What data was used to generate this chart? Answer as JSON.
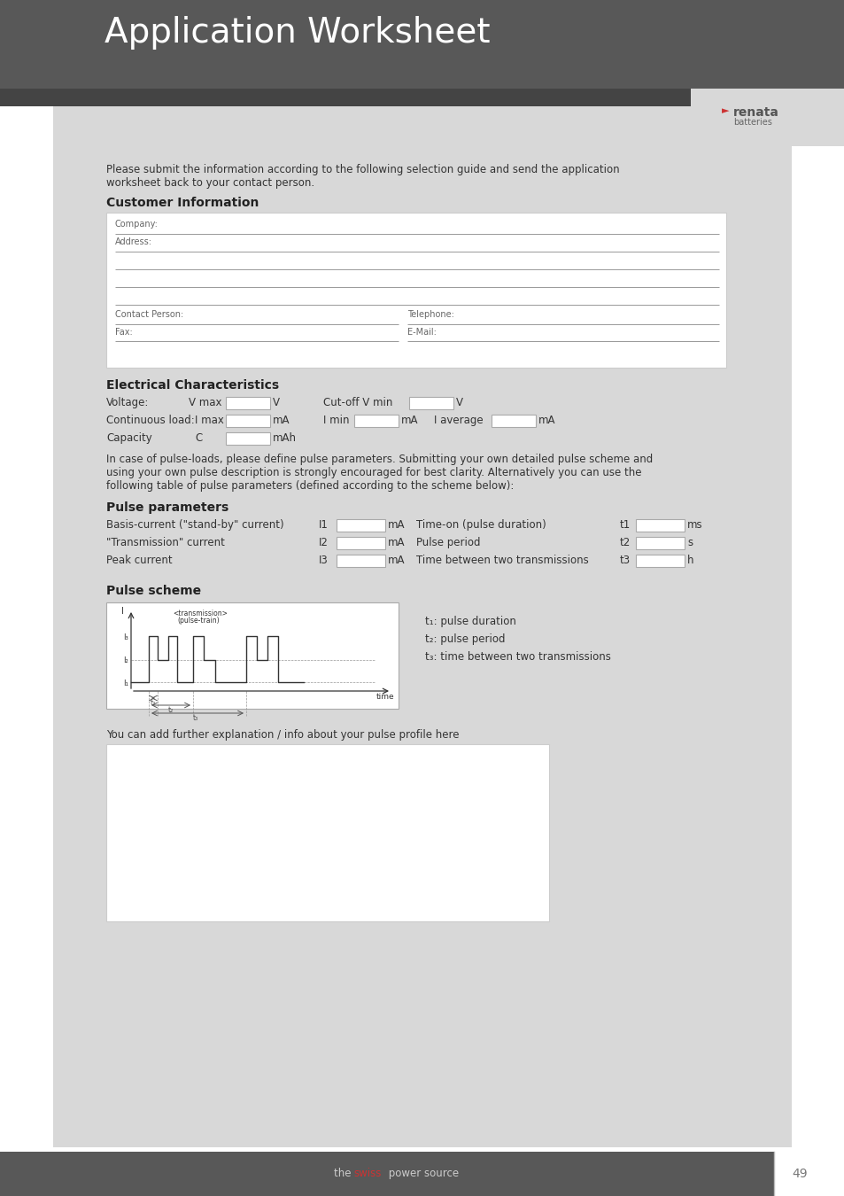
{
  "title": "Application Worksheet",
  "header_bg": "#585858",
  "header_text_color": "#ffffff",
  "content_bg": "#d8d8d8",
  "white": "#ffffff",
  "dark_text": "#333333",
  "light_text": "#666666",
  "footer_bg": "#585858",
  "footer_text_gray": "#cccccc",
  "footer_swiss_color": "#cc3333",
  "page_number": "49",
  "intro_text_line1": "Please submit the information according to the following selection guide and send the application",
  "intro_text_line2": "worksheet back to your contact person.",
  "customer_info_title": "Customer Information",
  "electrical_title": "Electrical Characteristics",
  "pulse_params_title": "Pulse parameters",
  "pulse_scheme_title": "Pulse scheme",
  "further_info_text": "You can add further explanation / info about your pulse profile here",
  "pulse_body_line1": "In case of pulse-loads, please define pulse parameters. Submitting your own detailed pulse scheme and",
  "pulse_body_line2": "using your own pulse description is strongly encouraged for best clarity. Alternatively you can use the",
  "pulse_body_line3": "following table of pulse parameters (defined according to the scheme below):",
  "pulse_param_rows": [
    {
      "label": "Basis-current (\"stand-by\" current)",
      "id": "I1",
      "unit": "mA",
      "right_label": "Time-on (pulse duration)",
      "right_id": "t1",
      "right_unit": "ms"
    },
    {
      "label": "\"Transmission\" current",
      "id": "I2",
      "unit": "mA",
      "right_label": "Pulse period",
      "right_id": "t2",
      "right_unit": "s"
    },
    {
      "label": "Peak current",
      "id": "I3",
      "unit": "mA",
      "right_label": "Time between two transmissions",
      "right_id": "t3",
      "right_unit": "h"
    }
  ],
  "pulse_legend": [
    "t₁: pulse duration",
    "t₂: pulse period",
    "t₃: time between two transmissions"
  ],
  "renata_color": "#cc3333",
  "page_num_color": "#777777"
}
